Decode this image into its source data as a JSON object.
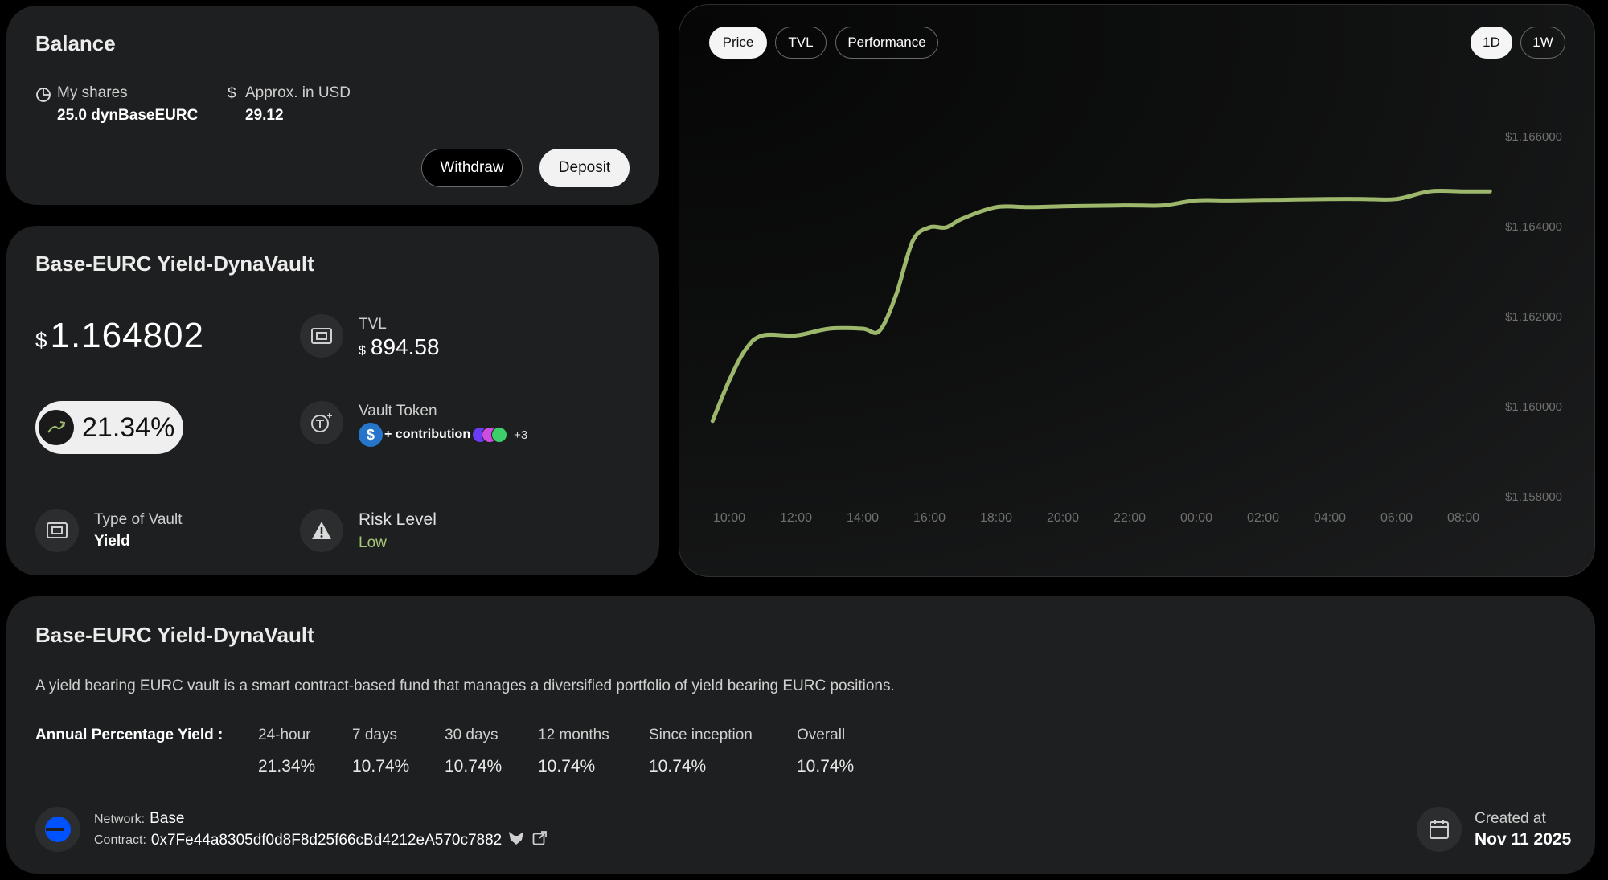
{
  "balance": {
    "title": "Balance",
    "shares_label": "My shares",
    "shares_value": "25.0 dynBaseEURC",
    "usd_label": "Approx. in USD",
    "usd_value": "29.12",
    "withdraw_label": "Withdraw",
    "deposit_label": "Deposit"
  },
  "vault": {
    "title": "Base-EURC Yield-DynaVault",
    "price_symbol": "$",
    "price": "1.164802",
    "apy_badge": "21.34%",
    "tvl_label": "TVL",
    "tvl_symbol": "$",
    "tvl_value": "894.58",
    "token_label": "Vault Token",
    "token_text": "+ contribution",
    "token_more": "+3",
    "type_label": "Type of Vault",
    "type_value": "Yield",
    "risk_label": "Risk Level",
    "risk_value": "Low",
    "accent": "#a6c877"
  },
  "chart": {
    "tabs": [
      "Price",
      "TVL",
      "Performance"
    ],
    "active_tab": "Price",
    "ranges": [
      "1D",
      "1W"
    ],
    "active_range": "1D"
  },
  "chart_data": {
    "type": "line",
    "x_ticks": [
      "10:00",
      "12:00",
      "14:00",
      "16:00",
      "18:00",
      "20:00",
      "22:00",
      "00:00",
      "02:00",
      "04:00",
      "06:00",
      "08:00"
    ],
    "y_ticks": [
      "$1.166000",
      "$1.164000",
      "$1.162000",
      "$1.160000",
      "$1.158000"
    ],
    "ylim": [
      1.158,
      1.166
    ],
    "line_color": "#9db86d",
    "series": [
      {
        "x": [
          -0.25,
          0.0,
          0.25,
          0.5,
          1.0,
          1.5,
          2.0,
          2.25,
          2.5,
          2.75,
          3.0,
          3.25,
          3.5,
          4.0,
          4.5,
          5.0,
          5.5,
          6.0,
          6.5,
          7.0,
          7.5,
          8.0,
          8.5,
          9.0,
          9.5,
          10.0,
          10.5,
          11.0,
          11.4
        ],
        "y": [
          1.1597,
          1.1606,
          1.1613,
          1.1616,
          1.1616,
          1.16175,
          1.16175,
          1.1617,
          1.1625,
          1.1637,
          1.164,
          1.164,
          1.1642,
          1.16445,
          1.16445,
          1.16447,
          1.16448,
          1.16449,
          1.16449,
          1.1646,
          1.1646,
          1.16461,
          1.16462,
          1.16463,
          1.16463,
          1.16463,
          1.1648,
          1.1648,
          1.1648
        ]
      }
    ]
  },
  "info": {
    "title": "Base-EURC Yield-DynaVault",
    "description": "A yield bearing EURC vault is a smart contract-based fund that manages a diversified portfolio of yield bearing EURC positions.",
    "apy_label": "Annual Percentage Yield :",
    "apy_columns": [
      {
        "period": "24-hour",
        "value": "21.34%"
      },
      {
        "period": "7 days",
        "value": "10.74%"
      },
      {
        "period": "30 days",
        "value": "10.74%"
      },
      {
        "period": "12 months",
        "value": "10.74%"
      },
      {
        "period": "Since inception",
        "value": "10.74%"
      },
      {
        "period": "Overall",
        "value": "10.74%"
      }
    ],
    "network_label": "Network:",
    "network_value": "Base",
    "contract_label": "Contract:",
    "contract_value": "0x7Fe44a8305df0d8F8d25f66cBd4212eA570c7882",
    "created_label": "Created at",
    "created_value": "Nov 11 2025"
  }
}
